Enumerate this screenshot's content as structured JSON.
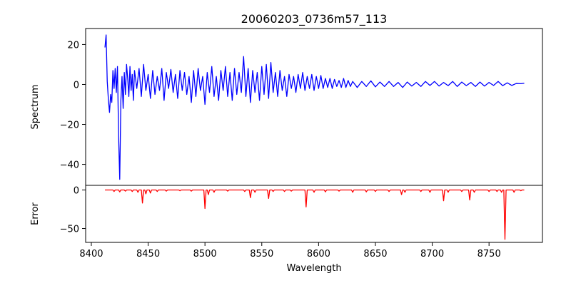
{
  "chart_data": [
    {
      "type": "line",
      "title": "20060203_0736m57_113",
      "xlabel": "",
      "ylabel": "Spectrum",
      "xlim": [
        8395,
        8797
      ],
      "ylim": [
        -50.5,
        28
      ],
      "x_ticks": [
        8400,
        8450,
        8500,
        8550,
        8600,
        8650,
        8700,
        8750
      ],
      "y_ticks": [
        20,
        0,
        -20,
        -40
      ],
      "y_tick_labels": [
        "20",
        "0",
        "−20",
        "−40"
      ],
      "grid": false,
      "series": [
        {
          "color": "#0000ff",
          "x_start": 8412,
          "x_end": 8781,
          "points": [
            [
              8412,
              18.5
            ],
            [
              8413,
              24.8
            ],
            [
              8414,
              1.5
            ],
            [
              8415,
              -7.5
            ],
            [
              8416,
              -14.0
            ],
            [
              8417,
              -5.0
            ],
            [
              8418,
              -9.0
            ],
            [
              8419,
              7.0
            ],
            [
              8420,
              -2.0
            ],
            [
              8421,
              8.0
            ],
            [
              8422,
              -4.0
            ],
            [
              8423,
              9.0
            ],
            [
              8424,
              -26.0
            ],
            [
              8425,
              -47.5
            ],
            [
              8426,
              -8.0
            ],
            [
              8427,
              4.0
            ],
            [
              8428,
              -12.0
            ],
            [
              8429,
              6.0
            ],
            [
              8430,
              -5.0
            ],
            [
              8431,
              10.0
            ],
            [
              8432,
              3.0
            ],
            [
              8433,
              -6.0
            ],
            [
              8434,
              9.0
            ],
            [
              8435,
              -3.0
            ],
            [
              8436,
              5.0
            ],
            [
              8437,
              -8.0
            ],
            [
              8438,
              7.0
            ],
            [
              8440,
              -2.0
            ],
            [
              8442,
              8.0
            ],
            [
              8444,
              -6.0
            ],
            [
              8446,
              10.0
            ],
            [
              8448,
              -3.0
            ],
            [
              8450,
              5.0
            ],
            [
              8452,
              -7.0
            ],
            [
              8454,
              7.0
            ],
            [
              8456,
              -5.0
            ],
            [
              8458,
              4.0
            ],
            [
              8460,
              -3.0
            ],
            [
              8462,
              8.0
            ],
            [
              8464,
              -8.0
            ],
            [
              8466,
              6.0
            ],
            [
              8468,
              -2.0
            ],
            [
              8470,
              7.5
            ],
            [
              8472,
              -4.0
            ],
            [
              8474,
              5.0
            ],
            [
              8476,
              -7.0
            ],
            [
              8478,
              7.0
            ],
            [
              8480,
              -3.0
            ],
            [
              8482,
              6.0
            ],
            [
              8484,
              -5.0
            ],
            [
              8486,
              4.0
            ],
            [
              8488,
              -9.0
            ],
            [
              8490,
              7.0
            ],
            [
              8492,
              -6.0
            ],
            [
              8494,
              8.0
            ],
            [
              8496,
              -3.0
            ],
            [
              8498,
              4.0
            ],
            [
              8500,
              -10.0
            ],
            [
              8502,
              6.0
            ],
            [
              8504,
              -4.0
            ],
            [
              8506,
              9.0
            ],
            [
              8508,
              -6.0
            ],
            [
              8510,
              4.0
            ],
            [
              8512,
              -8.0
            ],
            [
              8514,
              7.0
            ],
            [
              8516,
              -3.0
            ],
            [
              8518,
              9.0
            ],
            [
              8520,
              -6.0
            ],
            [
              8522,
              6.0
            ],
            [
              8524,
              -8.0
            ],
            [
              8526,
              8.0
            ],
            [
              8528,
              -5.0
            ],
            [
              8530,
              6.0
            ],
            [
              8532,
              -4.0
            ],
            [
              8534,
              14.0
            ],
            [
              8536,
              -6.0
            ],
            [
              8538,
              8.0
            ],
            [
              8540,
              -9.0
            ],
            [
              8542,
              7.0
            ],
            [
              8544,
              -4.0
            ],
            [
              8546,
              6.0
            ],
            [
              8548,
              -8.0
            ],
            [
              8550,
              9.0
            ],
            [
              8552,
              -5.0
            ],
            [
              8554,
              10.0
            ],
            [
              8556,
              -7.0
            ],
            [
              8558,
              11.0
            ],
            [
              8560,
              -4.0
            ],
            [
              8562,
              6.0
            ],
            [
              8564,
              -6.0
            ],
            [
              8566,
              7.0
            ],
            [
              8568,
              -3.0
            ],
            [
              8570,
              4.0
            ],
            [
              8572,
              -6.0
            ],
            [
              8574,
              5.0
            ],
            [
              8576,
              -2.0
            ],
            [
              8578,
              4.0
            ],
            [
              8580,
              -4.0
            ],
            [
              8582,
              5.0
            ],
            [
              8584,
              -2.0
            ],
            [
              8586,
              6.0
            ],
            [
              8588,
              -3.0
            ],
            [
              8590,
              4.0
            ],
            [
              8592,
              -2.0
            ],
            [
              8594,
              5.0
            ],
            [
              8596,
              -3.0
            ],
            [
              8598,
              4.0
            ],
            [
              8600,
              -2.0
            ],
            [
              8602,
              4.5
            ],
            [
              8604,
              -2.0
            ],
            [
              8606,
              3.0
            ],
            [
              8608,
              -1.5
            ],
            [
              8610,
              3.0
            ],
            [
              8612,
              -2.0
            ],
            [
              8614,
              2.5
            ],
            [
              8616,
              -1.0
            ],
            [
              8618,
              2.0
            ],
            [
              8620,
              -1.5
            ],
            [
              8622,
              3.0
            ],
            [
              8624,
              -1.5
            ],
            [
              8626,
              2.0
            ],
            [
              8628,
              -1.0
            ],
            [
              8630,
              1.5
            ],
            [
              8634,
              -1.5
            ],
            [
              8638,
              1.5
            ],
            [
              8642,
              -1.0
            ],
            [
              8646,
              1.8
            ],
            [
              8650,
              -1.2
            ],
            [
              8654,
              1.2
            ],
            [
              8658,
              -1.0
            ],
            [
              8662,
              1.5
            ],
            [
              8666,
              -1.0
            ],
            [
              8670,
              1.0
            ],
            [
              8674,
              -1.5
            ],
            [
              8678,
              1.2
            ],
            [
              8682,
              -0.8
            ],
            [
              8686,
              1.0
            ],
            [
              8690,
              -1.0
            ],
            [
              8694,
              1.5
            ],
            [
              8698,
              -0.5
            ],
            [
              8702,
              1.5
            ],
            [
              8706,
              -0.8
            ],
            [
              8710,
              1.0
            ],
            [
              8714,
              -0.6
            ],
            [
              8718,
              1.5
            ],
            [
              8722,
              -1.0
            ],
            [
              8726,
              1.2
            ],
            [
              8730,
              -0.6
            ],
            [
              8734,
              1.0
            ],
            [
              8738,
              -1.0
            ],
            [
              8742,
              1.2
            ],
            [
              8746,
              -0.8
            ],
            [
              8750,
              1.0
            ],
            [
              8754,
              -0.5
            ],
            [
              8758,
              1.5
            ],
            [
              8762,
              -0.6
            ],
            [
              8766,
              0.8
            ],
            [
              8770,
              -0.5
            ],
            [
              8774,
              0.5
            ],
            [
              8778,
              0.4
            ],
            [
              8781,
              0.6
            ]
          ]
        }
      ]
    },
    {
      "type": "line",
      "title": "",
      "xlabel": "Wavelength",
      "ylabel": "Error",
      "xlim": [
        8395,
        8797
      ],
      "ylim": [
        -68,
        6
      ],
      "x_ticks": [
        8400,
        8450,
        8500,
        8550,
        8600,
        8650,
        8700,
        8750
      ],
      "y_ticks": [
        0,
        -50
      ],
      "y_tick_labels": [
        "0",
        "−50"
      ],
      "grid": false,
      "series": [
        {
          "color": "#ff0000",
          "x_start": 8412,
          "x_end": 8781,
          "baseline": 0,
          "dips": [
            [
              8420,
              -2.0
            ],
            [
              8425,
              -2.5
            ],
            [
              8430,
              -1.5
            ],
            [
              8436,
              -2.0
            ],
            [
              8441,
              -3.0
            ],
            [
              8445,
              -17.0
            ],
            [
              8448,
              -5.0
            ],
            [
              8452,
              -4.0
            ],
            [
              8458,
              -2.0
            ],
            [
              8466,
              -1.5
            ],
            [
              8478,
              -1.0
            ],
            [
              8488,
              -1.5
            ],
            [
              8500,
              -24.0
            ],
            [
              8503,
              -6.0
            ],
            [
              8508,
              -3.0
            ],
            [
              8520,
              -1.5
            ],
            [
              8535,
              -2.0
            ],
            [
              8540,
              -10.0
            ],
            [
              8544,
              -3.0
            ],
            [
              8556,
              -11.0
            ],
            [
              8560,
              -2.0
            ],
            [
              8570,
              -2.0
            ],
            [
              8576,
              -1.5
            ],
            [
              8589,
              -22.0
            ],
            [
              8596,
              -3.0
            ],
            [
              8606,
              -2.5
            ],
            [
              8618,
              -1.5
            ],
            [
              8630,
              -3.0
            ],
            [
              8642,
              -2.5
            ],
            [
              8650,
              -2.0
            ],
            [
              8662,
              -2.0
            ],
            [
              8673,
              -6.0
            ],
            [
              8676,
              -3.0
            ],
            [
              8690,
              -2.0
            ],
            [
              8698,
              -3.0
            ],
            [
              8710,
              -14.0
            ],
            [
              8714,
              -3.0
            ],
            [
              8726,
              -2.0
            ],
            [
              8733,
              -13.0
            ],
            [
              8737,
              -3.0
            ],
            [
              8750,
              -2.0
            ],
            [
              8757,
              -2.0
            ],
            [
              8761,
              -3.0
            ],
            [
              8764,
              -64.0
            ],
            [
              8772,
              -3.0
            ],
            [
              8778,
              -1.0
            ]
          ]
        }
      ]
    }
  ]
}
